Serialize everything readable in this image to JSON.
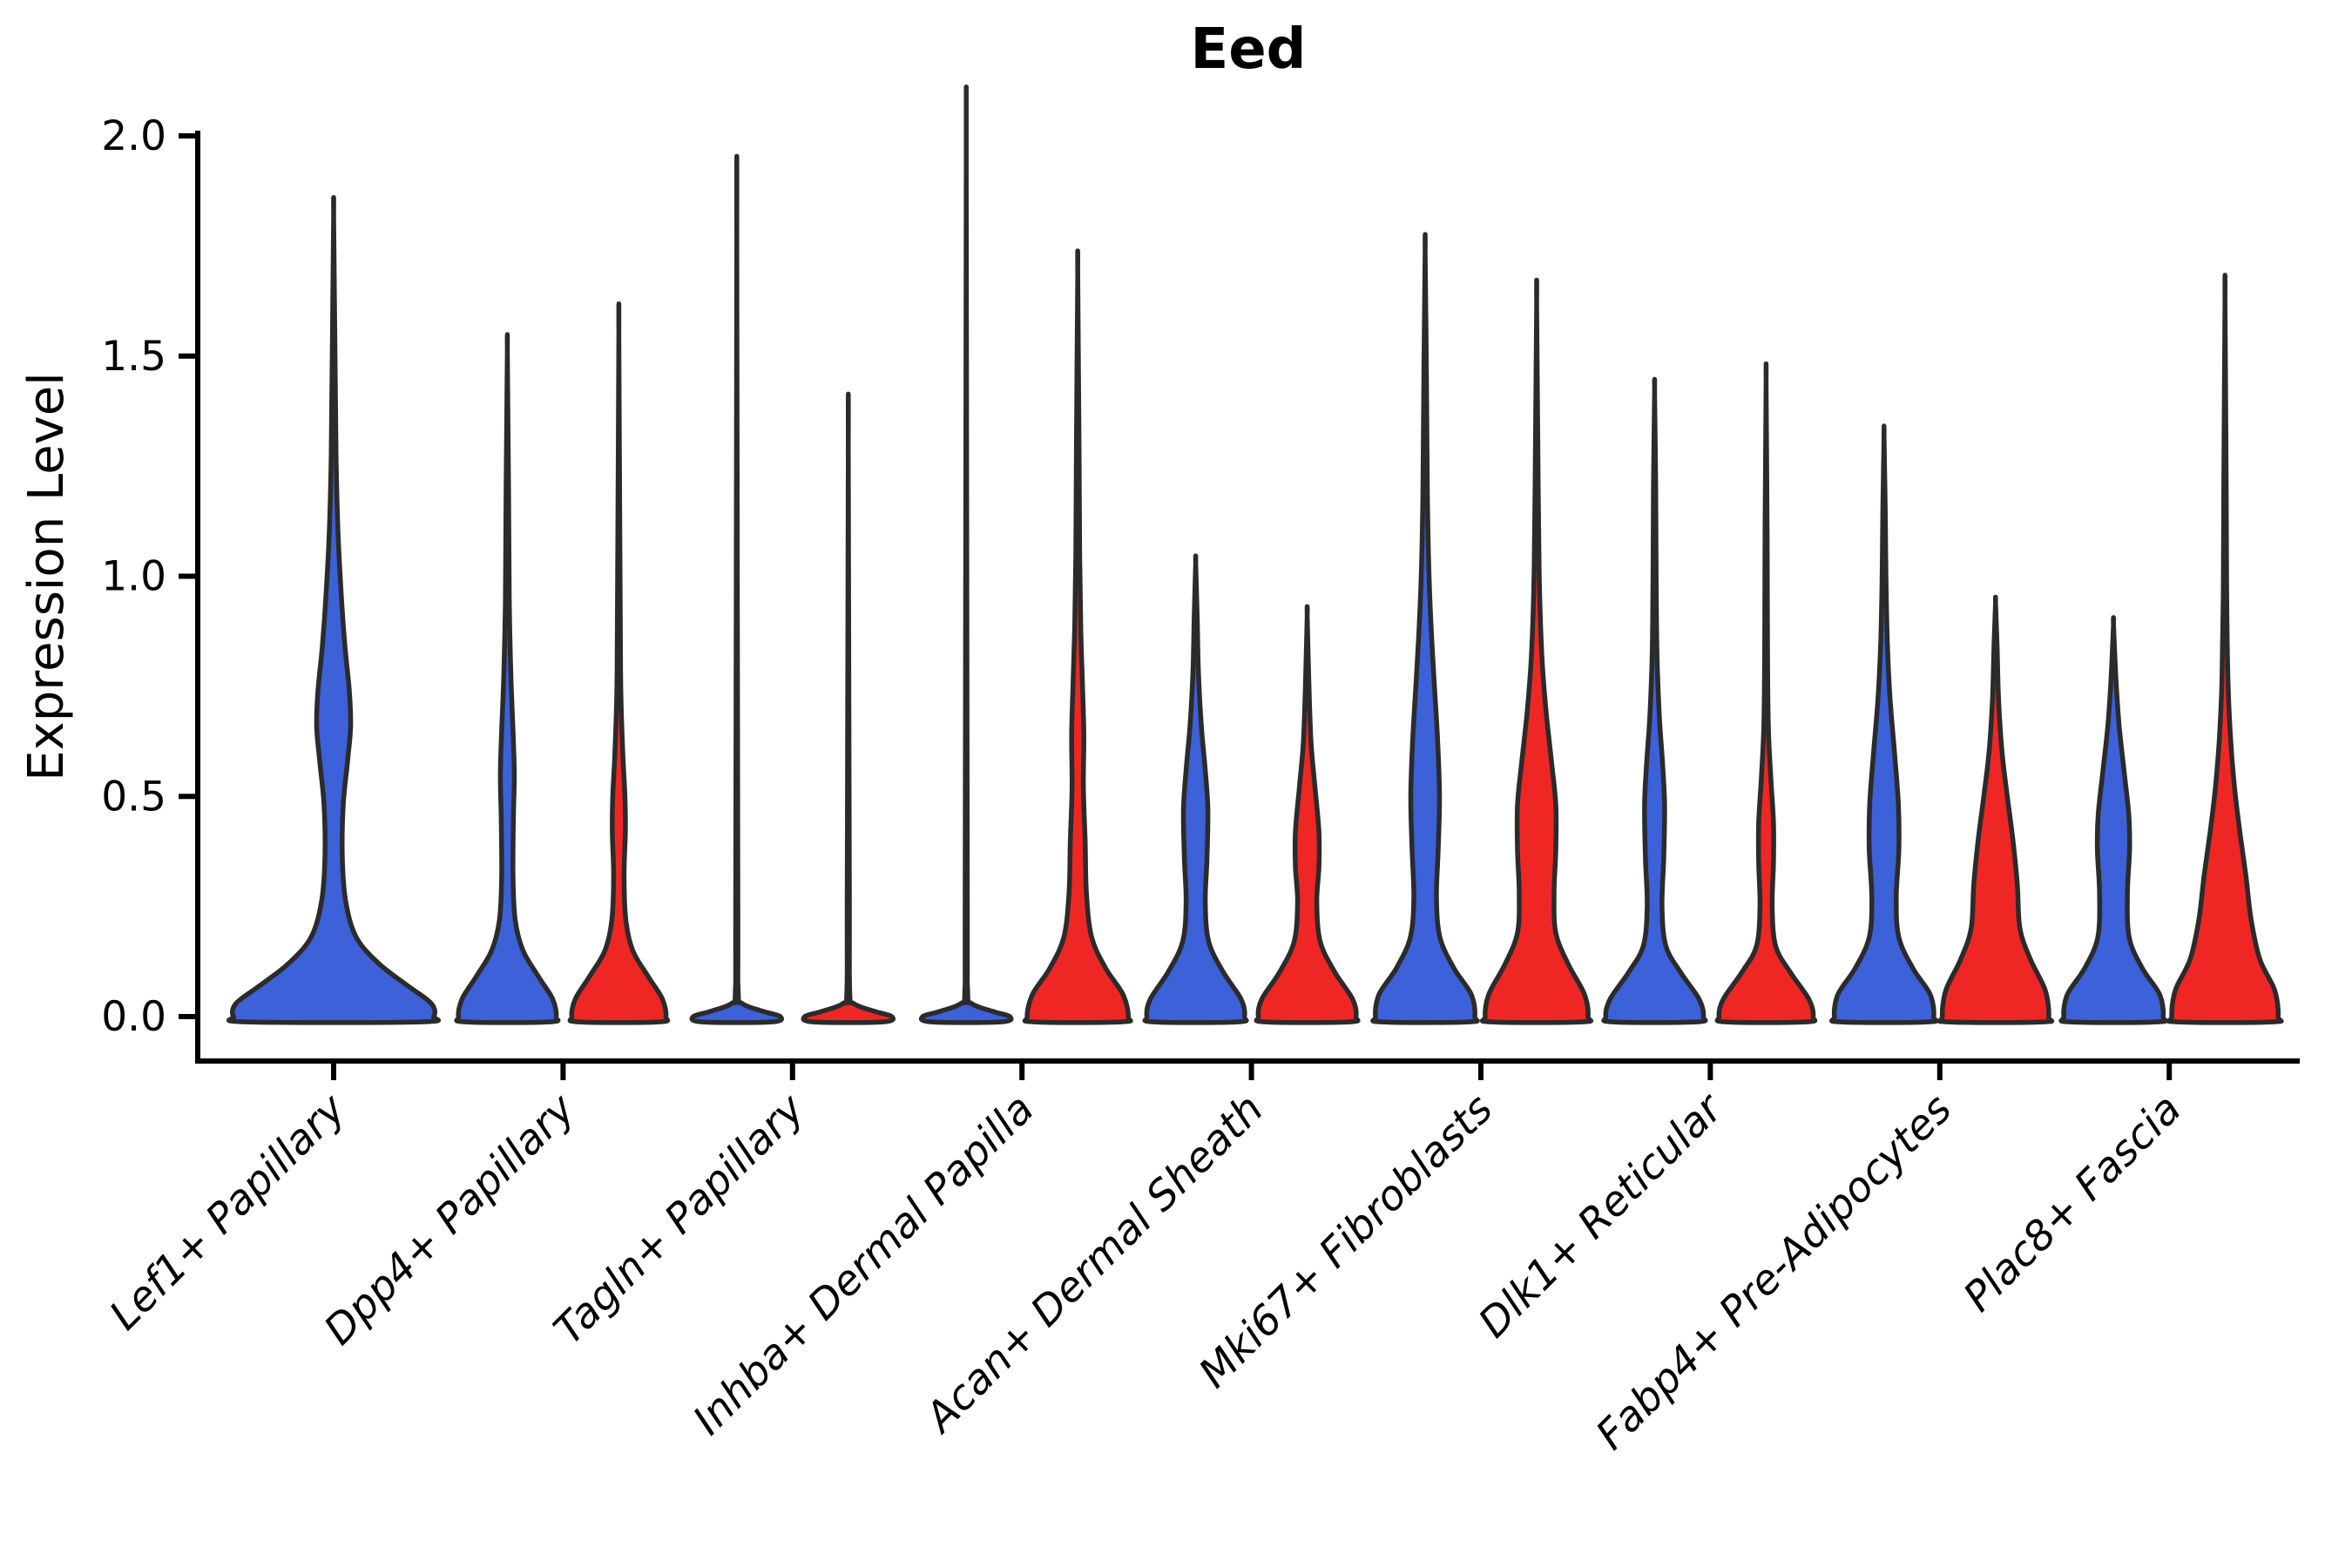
{
  "chart_data": {
    "type": "violin",
    "title": "Eed",
    "ylabel": "Expression Level",
    "xlabel": "",
    "ylim": [
      -0.09,
      2.0
    ],
    "grid": false,
    "legend_position": "none",
    "palette": {
      "blue": "#3C61D8",
      "red": "#EE2725",
      "outline": "#2B2B2B",
      "axis": "#000000"
    },
    "yticks": [
      {
        "label": "0.0",
        "value": 0.0
      },
      {
        "label": "0.5",
        "value": 0.5
      },
      {
        "label": "1.0",
        "value": 1.0
      },
      {
        "label": "1.5",
        "value": 1.5
      },
      {
        "label": "2.0",
        "value": 2.0
      }
    ],
    "categories": [
      "Lef1+ Papillary",
      "Dpp4+ Papillary",
      "Tagln+ Papillary",
      "Inhba+ Dermal Papilla",
      "Acan+ Dermal Sheath",
      "Mki67+ Fibroblasts",
      "Dlk1+ Reticular",
      "Fabp4+ Pre-Adipocytes",
      "Plac8+ Fascia"
    ],
    "violins": [
      {
        "category_index": 0,
        "hue": "blue",
        "dodge": "center",
        "top": 1.82,
        "profile": [
          [
            -0.012,
            100
          ],
          [
            0,
            115
          ],
          [
            0.03,
            112
          ],
          [
            0.07,
            85
          ],
          [
            0.12,
            52
          ],
          [
            0.18,
            26
          ],
          [
            0.26,
            14
          ],
          [
            0.36,
            10
          ],
          [
            0.48,
            11
          ],
          [
            0.58,
            16
          ],
          [
            0.66,
            19.5
          ],
          [
            0.74,
            18
          ],
          [
            0.84,
            13
          ],
          [
            0.95,
            9
          ],
          [
            1.1,
            5
          ],
          [
            1.27,
            2.8
          ],
          [
            1.5,
            1.6
          ],
          [
            1.82,
            0
          ]
        ]
      },
      {
        "category_index": 1,
        "hue": "blue",
        "dodge": "left",
        "top": 1.51,
        "profile": [
          [
            -0.012,
            48
          ],
          [
            0,
            56
          ],
          [
            0.04,
            52
          ],
          [
            0.09,
            36
          ],
          [
            0.15,
            18
          ],
          [
            0.22,
            9
          ],
          [
            0.32,
            6.5
          ],
          [
            0.45,
            7
          ],
          [
            0.55,
            8
          ],
          [
            0.65,
            6.5
          ],
          [
            0.78,
            4
          ],
          [
            0.95,
            2.2
          ],
          [
            1.2,
            1.4
          ],
          [
            1.51,
            0
          ]
        ]
      },
      {
        "category_index": 1,
        "hue": "red",
        "dodge": "right",
        "top": 1.55,
        "profile": [
          [
            -0.012,
            46
          ],
          [
            0,
            54
          ],
          [
            0.04,
            50
          ],
          [
            0.09,
            34
          ],
          [
            0.15,
            16
          ],
          [
            0.22,
            8
          ],
          [
            0.32,
            6
          ],
          [
            0.42,
            7.5
          ],
          [
            0.5,
            7
          ],
          [
            0.6,
            4.5
          ],
          [
            0.75,
            2.2
          ],
          [
            1.0,
            1.4
          ],
          [
            1.55,
            0
          ]
        ]
      },
      {
        "category_index": 2,
        "hue": "blue",
        "dodge": "left",
        "top": 1.77,
        "profile": [
          [
            -0.012,
            40
          ],
          [
            0,
            50
          ],
          [
            0.012,
            30
          ],
          [
            0.03,
            6
          ],
          [
            0.06,
            1.6
          ],
          [
            0.3,
            1.2
          ],
          [
            1.77,
            0
          ]
        ]
      },
      {
        "category_index": 2,
        "hue": "red",
        "dodge": "right",
        "top": 1.29,
        "profile": [
          [
            -0.012,
            40
          ],
          [
            0,
            50
          ],
          [
            0.012,
            30
          ],
          [
            0.03,
            6
          ],
          [
            0.06,
            1.6
          ],
          [
            0.3,
            1.2
          ],
          [
            1.29,
            0
          ]
        ]
      },
      {
        "category_index": 3,
        "hue": "blue",
        "dodge": "left",
        "top": 1.91,
        "profile": [
          [
            -0.012,
            40
          ],
          [
            0,
            50
          ],
          [
            0.012,
            30
          ],
          [
            0.03,
            6
          ],
          [
            0.06,
            1.6
          ],
          [
            0.3,
            1.2
          ],
          [
            1.91,
            0
          ]
        ]
      },
      {
        "category_index": 3,
        "hue": "red",
        "dodge": "right",
        "top": 1.69,
        "profile": [
          [
            -0.012,
            50
          ],
          [
            0,
            58
          ],
          [
            0.05,
            52
          ],
          [
            0.11,
            32
          ],
          [
            0.18,
            16
          ],
          [
            0.28,
            10
          ],
          [
            0.4,
            8.5
          ],
          [
            0.52,
            6.5
          ],
          [
            0.64,
            7
          ],
          [
            0.75,
            5.5
          ],
          [
            0.88,
            3.5
          ],
          [
            1.05,
            2.2
          ],
          [
            1.3,
            1.5
          ],
          [
            1.69,
            0
          ]
        ]
      },
      {
        "category_index": 4,
        "hue": "blue",
        "dodge": "left",
        "top": 1.03,
        "profile": [
          [
            -0.012,
            48
          ],
          [
            0,
            56
          ],
          [
            0.04,
            52
          ],
          [
            0.1,
            32
          ],
          [
            0.17,
            15
          ],
          [
            0.26,
            11
          ],
          [
            0.36,
            13
          ],
          [
            0.47,
            14
          ],
          [
            0.56,
            11
          ],
          [
            0.66,
            6.5
          ],
          [
            0.78,
            3.2
          ],
          [
            0.9,
            1.8
          ],
          [
            1.03,
            0
          ]
        ]
      },
      {
        "category_index": 4,
        "hue": "red",
        "dodge": "right",
        "top": 0.91,
        "profile": [
          [
            -0.012,
            48
          ],
          [
            0,
            56
          ],
          [
            0.04,
            52
          ],
          [
            0.1,
            32
          ],
          [
            0.17,
            15
          ],
          [
            0.26,
            11
          ],
          [
            0.34,
            13.5
          ],
          [
            0.42,
            13.5
          ],
          [
            0.52,
            9
          ],
          [
            0.62,
            4.5
          ],
          [
            0.74,
            2.2
          ],
          [
            0.91,
            0
          ]
        ]
      },
      {
        "category_index": 5,
        "hue": "blue",
        "dodge": "left",
        "top": 1.74,
        "profile": [
          [
            -0.012,
            50
          ],
          [
            0,
            57
          ],
          [
            0.05,
            53
          ],
          [
            0.11,
            33
          ],
          [
            0.18,
            17
          ],
          [
            0.27,
            13
          ],
          [
            0.38,
            15
          ],
          [
            0.5,
            16.5
          ],
          [
            0.62,
            14.5
          ],
          [
            0.74,
            11
          ],
          [
            0.86,
            7.5
          ],
          [
            1.0,
            4.5
          ],
          [
            1.18,
            2.6
          ],
          [
            1.45,
            1.5
          ],
          [
            1.74,
            0
          ]
        ]
      },
      {
        "category_index": 5,
        "hue": "red",
        "dodge": "right",
        "top": 1.62,
        "profile": [
          [
            -0.012,
            52
          ],
          [
            0,
            59
          ],
          [
            0.05,
            55
          ],
          [
            0.12,
            36
          ],
          [
            0.19,
            22
          ],
          [
            0.28,
            20
          ],
          [
            0.38,
            22
          ],
          [
            0.48,
            22
          ],
          [
            0.58,
            17
          ],
          [
            0.7,
            10.5
          ],
          [
            0.82,
            6
          ],
          [
            0.98,
            3.2
          ],
          [
            1.2,
            1.8
          ],
          [
            1.62,
            0
          ]
        ]
      },
      {
        "category_index": 6,
        "hue": "blue",
        "dodge": "left",
        "top": 1.42,
        "profile": [
          [
            -0.012,
            48
          ],
          [
            0,
            56
          ],
          [
            0.04,
            51
          ],
          [
            0.1,
            30
          ],
          [
            0.16,
            13
          ],
          [
            0.25,
            8.5
          ],
          [
            0.36,
            10.5
          ],
          [
            0.48,
            11.5
          ],
          [
            0.58,
            9
          ],
          [
            0.68,
            5.5
          ],
          [
            0.82,
            2.8
          ],
          [
            1.0,
            1.8
          ],
          [
            1.2,
            1.3
          ],
          [
            1.42,
            0
          ]
        ]
      },
      {
        "category_index": 6,
        "hue": "red",
        "dodge": "right",
        "top": 1.44,
        "profile": [
          [
            -0.012,
            46
          ],
          [
            0,
            54
          ],
          [
            0.04,
            49
          ],
          [
            0.1,
            28
          ],
          [
            0.16,
            11
          ],
          [
            0.25,
            7
          ],
          [
            0.35,
            8.5
          ],
          [
            0.44,
            8.5
          ],
          [
            0.54,
            5.5
          ],
          [
            0.66,
            2.6
          ],
          [
            0.85,
            1.6
          ],
          [
            1.1,
            1.2
          ],
          [
            1.44,
            0
          ]
        ]
      },
      {
        "category_index": 7,
        "hue": "blue",
        "dodge": "left",
        "top": 1.32,
        "profile": [
          [
            -0.012,
            50
          ],
          [
            0,
            57
          ],
          [
            0.05,
            53
          ],
          [
            0.11,
            33
          ],
          [
            0.18,
            17
          ],
          [
            0.27,
            14
          ],
          [
            0.38,
            17
          ],
          [
            0.48,
            16.5
          ],
          [
            0.6,
            12
          ],
          [
            0.72,
            7
          ],
          [
            0.85,
            3.8
          ],
          [
            1.0,
            2.2
          ],
          [
            1.15,
            1.4
          ],
          [
            1.32,
            0
          ]
        ]
      },
      {
        "category_index": 7,
        "hue": "red",
        "dodge": "right",
        "top": 0.94,
        "profile": [
          [
            -0.012,
            54
          ],
          [
            0,
            61
          ],
          [
            0.06,
            57
          ],
          [
            0.13,
            40
          ],
          [
            0.2,
            28
          ],
          [
            0.3,
            25
          ],
          [
            0.4,
            20
          ],
          [
            0.5,
            13.5
          ],
          [
            0.6,
            7.5
          ],
          [
            0.72,
            3.5
          ],
          [
            0.84,
            1.8
          ],
          [
            0.94,
            0
          ]
        ]
      },
      {
        "category_index": 8,
        "hue": "blue",
        "dodge": "left",
        "top": 0.89,
        "profile": [
          [
            -0.012,
            50
          ],
          [
            0,
            57
          ],
          [
            0.05,
            53
          ],
          [
            0.11,
            33
          ],
          [
            0.18,
            18
          ],
          [
            0.28,
            16
          ],
          [
            0.38,
            18.5
          ],
          [
            0.46,
            17.5
          ],
          [
            0.56,
            12
          ],
          [
            0.66,
            6.5
          ],
          [
            0.76,
            3
          ],
          [
            0.89,
            0
          ]
        ]
      },
      {
        "category_index": 8,
        "hue": "red",
        "dodge": "right",
        "top": 1.63,
        "profile": [
          [
            -0.012,
            54
          ],
          [
            0,
            61
          ],
          [
            0.06,
            57
          ],
          [
            0.13,
            40
          ],
          [
            0.22,
            30
          ],
          [
            0.32,
            24
          ],
          [
            0.42,
            17
          ],
          [
            0.52,
            11
          ],
          [
            0.63,
            6.5
          ],
          [
            0.76,
            3.5
          ],
          [
            0.95,
            2
          ],
          [
            1.2,
            1.4
          ],
          [
            1.63,
            0
          ]
        ]
      }
    ]
  }
}
